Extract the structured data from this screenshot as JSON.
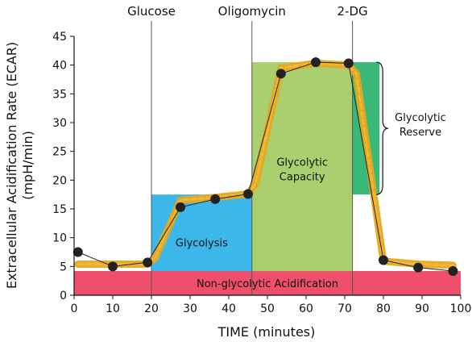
{
  "chart_data": {
    "type": "line",
    "xlabel": "TIME (minutes)",
    "ylabel": [
      "Extracellular Acidification Rate (ECAR)",
      "(mpH/min)"
    ],
    "xlim": [
      0,
      100
    ],
    "ylim": [
      0,
      45
    ],
    "xticks": [
      0,
      10,
      20,
      30,
      40,
      50,
      60,
      70,
      80,
      90,
      100
    ],
    "yticks": [
      0,
      5,
      10,
      15,
      20,
      25,
      30,
      35,
      40,
      45
    ],
    "grid": false,
    "injections": [
      {
        "label": "Glucose",
        "x": 20
      },
      {
        "label": "Oligomycin",
        "x": 46
      },
      {
        "label": "2-DG",
        "x": 72
      }
    ],
    "regions": [
      {
        "label": "Non-glycolytic Acidification",
        "x": [
          0,
          100
        ],
        "y": [
          0,
          4.2
        ],
        "color": "#ee4f6b"
      },
      {
        "label": "Glycolysis",
        "x": [
          20,
          46
        ],
        "y": [
          4.2,
          17.5
        ],
        "color": "#3bb7ea"
      },
      {
        "label": "Glycolytic Capacity",
        "x": [
          46,
          72
        ],
        "y": [
          4.2,
          40.5
        ],
        "color": "#a9cf6e"
      },
      {
        "label": "Glycolytic Reserve",
        "x": [
          72,
          79
        ],
        "y": [
          17.5,
          40.5
        ],
        "color": "#3ab878"
      }
    ],
    "series": [
      {
        "x": [
          1,
          10,
          19,
          27.5,
          36.5,
          45,
          53.5,
          62.5,
          71,
          80,
          89,
          98
        ],
        "values": [
          7.5,
          5.0,
          5.7,
          15.3,
          16.7,
          17.6,
          38.5,
          40.5,
          40.3,
          6.1,
          4.8,
          4.2
        ]
      }
    ],
    "trend": {
      "x": [
        1,
        10,
        19,
        21,
        27.5,
        36.5,
        45,
        47,
        53.5,
        62.5,
        71,
        73,
        80,
        89,
        98
      ],
      "values": [
        5.4,
        5.4,
        5.4,
        6.5,
        16.5,
        17.0,
        17.6,
        19.5,
        39.5,
        40.3,
        40.0,
        38.5,
        5.9,
        5.4,
        5.2
      ],
      "color": "#e7a81c"
    },
    "colors": {
      "marker": "#222222",
      "connector": "#222222",
      "vline": "#555555",
      "brace": "#222222"
    }
  }
}
